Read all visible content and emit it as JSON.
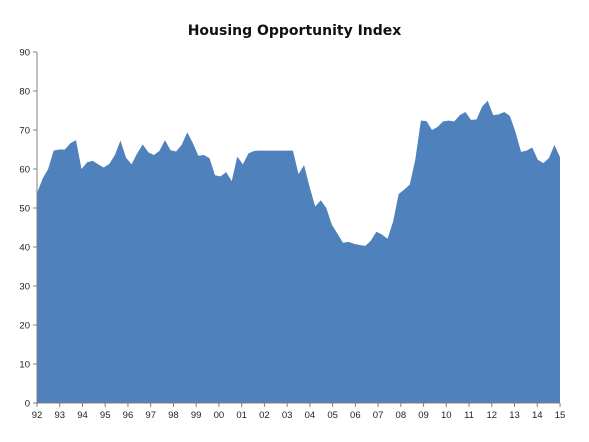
{
  "chart_data": {
    "type": "area",
    "title": "Housing Opportunity Index",
    "xlabel": "",
    "ylabel": "",
    "ylim": [
      0,
      90
    ],
    "yticks": [
      0,
      10,
      20,
      30,
      40,
      50,
      60,
      70,
      80,
      90
    ],
    "xticks": [
      "92",
      "93",
      "94",
      "95",
      "96",
      "97",
      "98",
      "99",
      "00",
      "01",
      "02",
      "03",
      "04",
      "05",
      "06",
      "07",
      "08",
      "09",
      "10",
      "11",
      "12",
      "13",
      "14",
      "15"
    ],
    "grid": false,
    "legend": "none",
    "colors": {
      "fill": "#4F81BD",
      "axis": "#808080"
    },
    "series": [
      {
        "values": [
          53.8,
          57.5,
          60.0,
          64.7,
          65.0,
          65.0,
          66.6,
          67.4,
          60.0,
          61.7,
          62.1,
          61.2,
          60.4,
          61.3,
          63.6,
          67.3,
          62.9,
          61.2,
          64.0,
          66.3,
          64.3,
          63.6,
          64.6,
          67.4,
          64.8,
          64.5,
          66.2,
          69.4,
          66.7,
          63.4,
          63.6,
          62.8,
          58.4,
          58.1,
          59.2,
          56.9,
          63.2,
          61.2,
          64.0,
          64.6,
          64.7,
          64.7,
          64.7,
          64.7,
          64.7,
          64.7,
          64.7,
          58.7,
          61.0,
          55.4,
          50.4,
          52.0,
          50.0,
          45.7,
          43.4,
          41.1,
          41.3,
          40.8,
          40.5,
          40.3,
          41.6,
          43.9,
          43.2,
          42.1,
          46.5,
          53.6,
          54.7,
          56.0,
          62.5,
          72.4,
          72.3,
          70.0,
          70.8,
          72.2,
          72.4,
          72.2,
          73.8,
          74.6,
          72.6,
          72.7,
          76.0,
          77.5,
          73.8,
          74.0,
          74.6,
          73.6,
          69.5,
          64.4,
          64.7,
          65.5,
          62.4,
          61.5,
          62.8,
          66.2,
          63.0
        ]
      }
    ]
  }
}
